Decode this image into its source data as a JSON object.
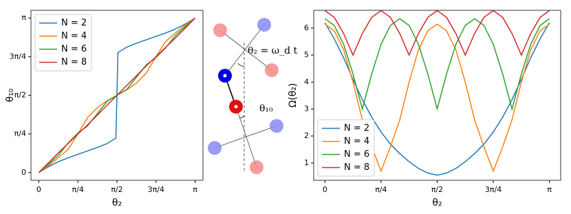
{
  "chart_data": [
    {
      "type": "line",
      "xlabel": "θ₂",
      "ylabel": "θ₁₀",
      "legend": "upper left",
      "x": [
        0,
        0.196,
        0.393,
        0.589,
        0.785,
        0.982,
        1.178,
        1.374,
        1.55,
        1.5708,
        1.59,
        1.767,
        1.963,
        2.16,
        2.356,
        2.553,
        2.749,
        2.945,
        3.1416
      ],
      "series": [
        {
          "name": "N = 2",
          "color": "#1f77b4",
          "values": [
            0,
            0.12,
            0.22,
            0.3,
            0.37,
            0.44,
            0.51,
            0.59,
            0.7,
            1.5708,
            2.44,
            2.55,
            2.63,
            2.7,
            2.77,
            2.84,
            2.92,
            3.02,
            3.1416
          ]
        },
        {
          "name": "N = 4",
          "color": "#ff7f0e",
          "values": [
            0,
            0.14,
            0.3,
            0.47,
            0.785,
            1.12,
            1.32,
            1.46,
            1.555,
            1.5708,
            1.586,
            1.68,
            1.82,
            2.02,
            2.356,
            2.67,
            2.84,
            3.0,
            3.1416
          ]
        },
        {
          "name": "N = 6",
          "color": "#2ca02c",
          "values": [
            0,
            0.17,
            0.35,
            0.6,
            0.8,
            0.95,
            1.2,
            1.45,
            1.56,
            1.5708,
            1.58,
            1.69,
            1.94,
            2.19,
            2.34,
            2.54,
            2.79,
            2.97,
            3.1416
          ]
        },
        {
          "name": "N = 8",
          "color": "#d62728",
          "values": [
            0,
            0.2,
            0.4,
            0.59,
            0.785,
            0.97,
            1.17,
            1.37,
            1.55,
            1.5708,
            1.59,
            1.77,
            1.97,
            2.17,
            2.356,
            2.55,
            2.74,
            2.94,
            3.1416
          ]
        }
      ],
      "xlim": [
        -0.157,
        3.299
      ],
      "ylim": [
        -0.157,
        3.299
      ],
      "xticks": [
        0,
        {
          "value": 0.7854,
          "label": "π/4"
        },
        {
          "value": 1.5708,
          "label": "π/2"
        },
        {
          "value": 2.3562,
          "label": "3π/4"
        },
        {
          "value": 3.1416,
          "label": "π"
        }
      ],
      "yticks": [
        0,
        {
          "value": 0.7854,
          "label": "π/4"
        },
        {
          "value": 1.5708,
          "label": "π/2"
        },
        {
          "value": 2.3562,
          "label": "3π/4"
        },
        {
          "value": 3.1416,
          "label": "π"
        }
      ]
    },
    {
      "type": "line",
      "xlabel": "θ₂",
      "ylabel": "Ω(θ₂)",
      "legend": "lower left",
      "x": [
        0,
        0.1309,
        0.2618,
        0.3927,
        0.5236,
        0.6545,
        0.7854,
        0.9163,
        1.0472,
        1.1781,
        1.309,
        1.4399,
        1.5708,
        1.7017,
        1.8326,
        1.9635,
        2.0944,
        2.2253,
        2.3562,
        2.4871,
        2.618,
        2.7489,
        2.8798,
        3.0107,
        3.1416
      ],
      "series": [
        {
          "name": "N = 2",
          "color": "#1f77b4",
          "values": [
            6.2,
            5.6,
            4.9,
            4.1,
            3.35,
            2.7,
            2.15,
            1.7,
            1.35,
            1.05,
            0.8,
            0.63,
            0.55,
            0.63,
            0.8,
            1.05,
            1.35,
            1.7,
            2.15,
            2.7,
            3.35,
            4.1,
            4.9,
            5.6,
            6.2
          ]
        },
        {
          "name": "N = 4",
          "color": "#ff7f0e",
          "values": [
            6.15,
            5.9,
            5.2,
            4.0,
            2.6,
            1.6,
            0.7,
            1.6,
            2.6,
            4.0,
            5.2,
            5.9,
            6.15,
            5.9,
            5.2,
            4.0,
            2.6,
            1.6,
            0.7,
            1.6,
            2.6,
            4.0,
            5.2,
            5.9,
            6.15
          ]
        },
        {
          "name": "N = 6",
          "color": "#2ca02c",
          "values": [
            6.35,
            6.1,
            5.4,
            4.3,
            3.0,
            4.3,
            5.4,
            6.1,
            6.35,
            6.1,
            5.4,
            4.3,
            3.0,
            4.3,
            5.4,
            6.1,
            6.35,
            6.1,
            5.4,
            4.3,
            3.0,
            4.3,
            5.4,
            6.1,
            6.35
          ]
        },
        {
          "name": "N = 8",
          "color": "#d62728",
          "values": [
            6.65,
            6.4,
            5.8,
            5.0,
            5.8,
            6.4,
            6.65,
            6.4,
            5.8,
            5.0,
            5.8,
            6.4,
            6.65,
            6.4,
            5.8,
            5.0,
            5.8,
            6.4,
            6.65,
            6.4,
            5.8,
            5.0,
            5.8,
            6.4,
            6.65
          ]
        }
      ],
      "xlim": [
        -0.157,
        3.299
      ],
      "ylim": [
        0.36,
        6.66
      ],
      "xticks": [
        0,
        {
          "value": 0.7854,
          "label": "π/4"
        },
        {
          "value": 1.5708,
          "label": "π/2"
        },
        {
          "value": 2.3562,
          "label": "3π/4"
        },
        {
          "value": 3.1416,
          "label": "π"
        }
      ],
      "yticks": [
        1,
        2,
        3,
        4,
        5,
        6
      ]
    }
  ],
  "diagram": {
    "labels": [
      "θ₂ = ω_d t",
      "θ₁₀"
    ]
  }
}
